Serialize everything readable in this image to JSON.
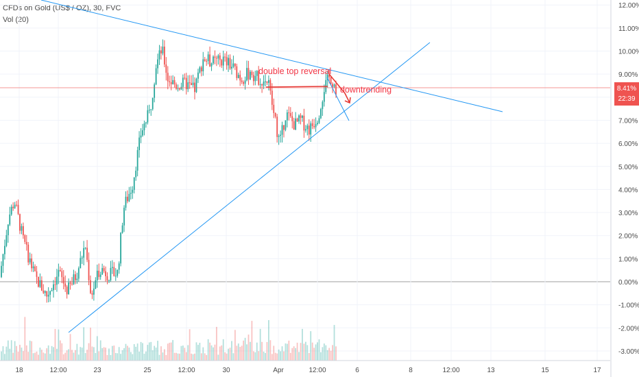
{
  "header": {
    "symbol_line": "CFDs on Gold (US$ / OZ), 30, FVC",
    "volume_line": "Vol (20)"
  },
  "price_badge": {
    "value": "8.41%",
    "countdown": "22:39"
  },
  "annotations": {
    "double_top": "double top reversal",
    "downtrending": "downtrending"
  },
  "colors": {
    "up": "#26a69a",
    "down": "#ef5350",
    "trendline": "#2196f3",
    "annotation": "#f23645",
    "price_line": "#ef5350",
    "zero_line": "#9e9e9e"
  },
  "chart_data": {
    "type": "candlestick",
    "y_unit": "%",
    "y_ticks": [
      "12.00%",
      "11.00%",
      "10.00%",
      "9.00%",
      "8.00%",
      "7.00%",
      "6.00%",
      "5.00%",
      "4.00%",
      "3.00%",
      "2.00%",
      "1.00%",
      "0.00%",
      "-1.00%",
      "-2.00%",
      "-3.00%"
    ],
    "ylim": [
      -3.3,
      12.3
    ],
    "x_ticks": [
      "18",
      "12:00",
      "23",
      "25",
      "12:00",
      "30",
      "Apr",
      "12:00",
      "6",
      "8",
      "12:00",
      "13",
      "15",
      "17"
    ],
    "last_value": 8.41,
    "price_path": [
      [
        0.0,
        0.2
      ],
      [
        0.03,
        2.8
      ],
      [
        0.05,
        3.5
      ],
      [
        0.08,
        1.8
      ],
      [
        0.12,
        0.2
      ],
      [
        0.16,
        -0.6
      ],
      [
        0.2,
        0.4
      ],
      [
        0.23,
        -0.4
      ],
      [
        0.26,
        0.3
      ],
      [
        0.29,
        1.6
      ],
      [
        0.31,
        -0.6
      ],
      [
        0.34,
        0.6
      ],
      [
        0.37,
        0.3
      ],
      [
        0.4,
        0.4
      ],
      [
        0.42,
        3.2
      ],
      [
        0.45,
        4.2
      ],
      [
        0.48,
        6.5
      ],
      [
        0.51,
        7.4
      ],
      [
        0.53,
        9.4
      ],
      [
        0.55,
        10.1
      ],
      [
        0.57,
        8.8
      ],
      [
        0.6,
        8.5
      ],
      [
        0.63,
        8.6
      ],
      [
        0.66,
        8.3
      ],
      [
        0.69,
        9.7
      ],
      [
        0.72,
        9.5
      ],
      [
        0.76,
        9.6
      ],
      [
        0.79,
        9.3
      ],
      [
        0.82,
        8.8
      ],
      [
        0.85,
        9.1
      ],
      [
        0.88,
        8.8
      ],
      [
        0.91,
        8.7
      ],
      [
        0.93,
        7.2
      ],
      [
        0.95,
        6.0
      ],
      [
        0.97,
        7.3
      ],
      [
        1.0,
        6.8
      ],
      [
        1.02,
        7.0
      ],
      [
        1.05,
        6.6
      ],
      [
        1.08,
        7.2
      ],
      [
        1.1,
        8.4
      ],
      [
        1.12,
        8.9
      ],
      [
        1.14,
        8.4
      ]
    ],
    "series": [
      {
        "name": "Vol (20)"
      }
    ]
  }
}
